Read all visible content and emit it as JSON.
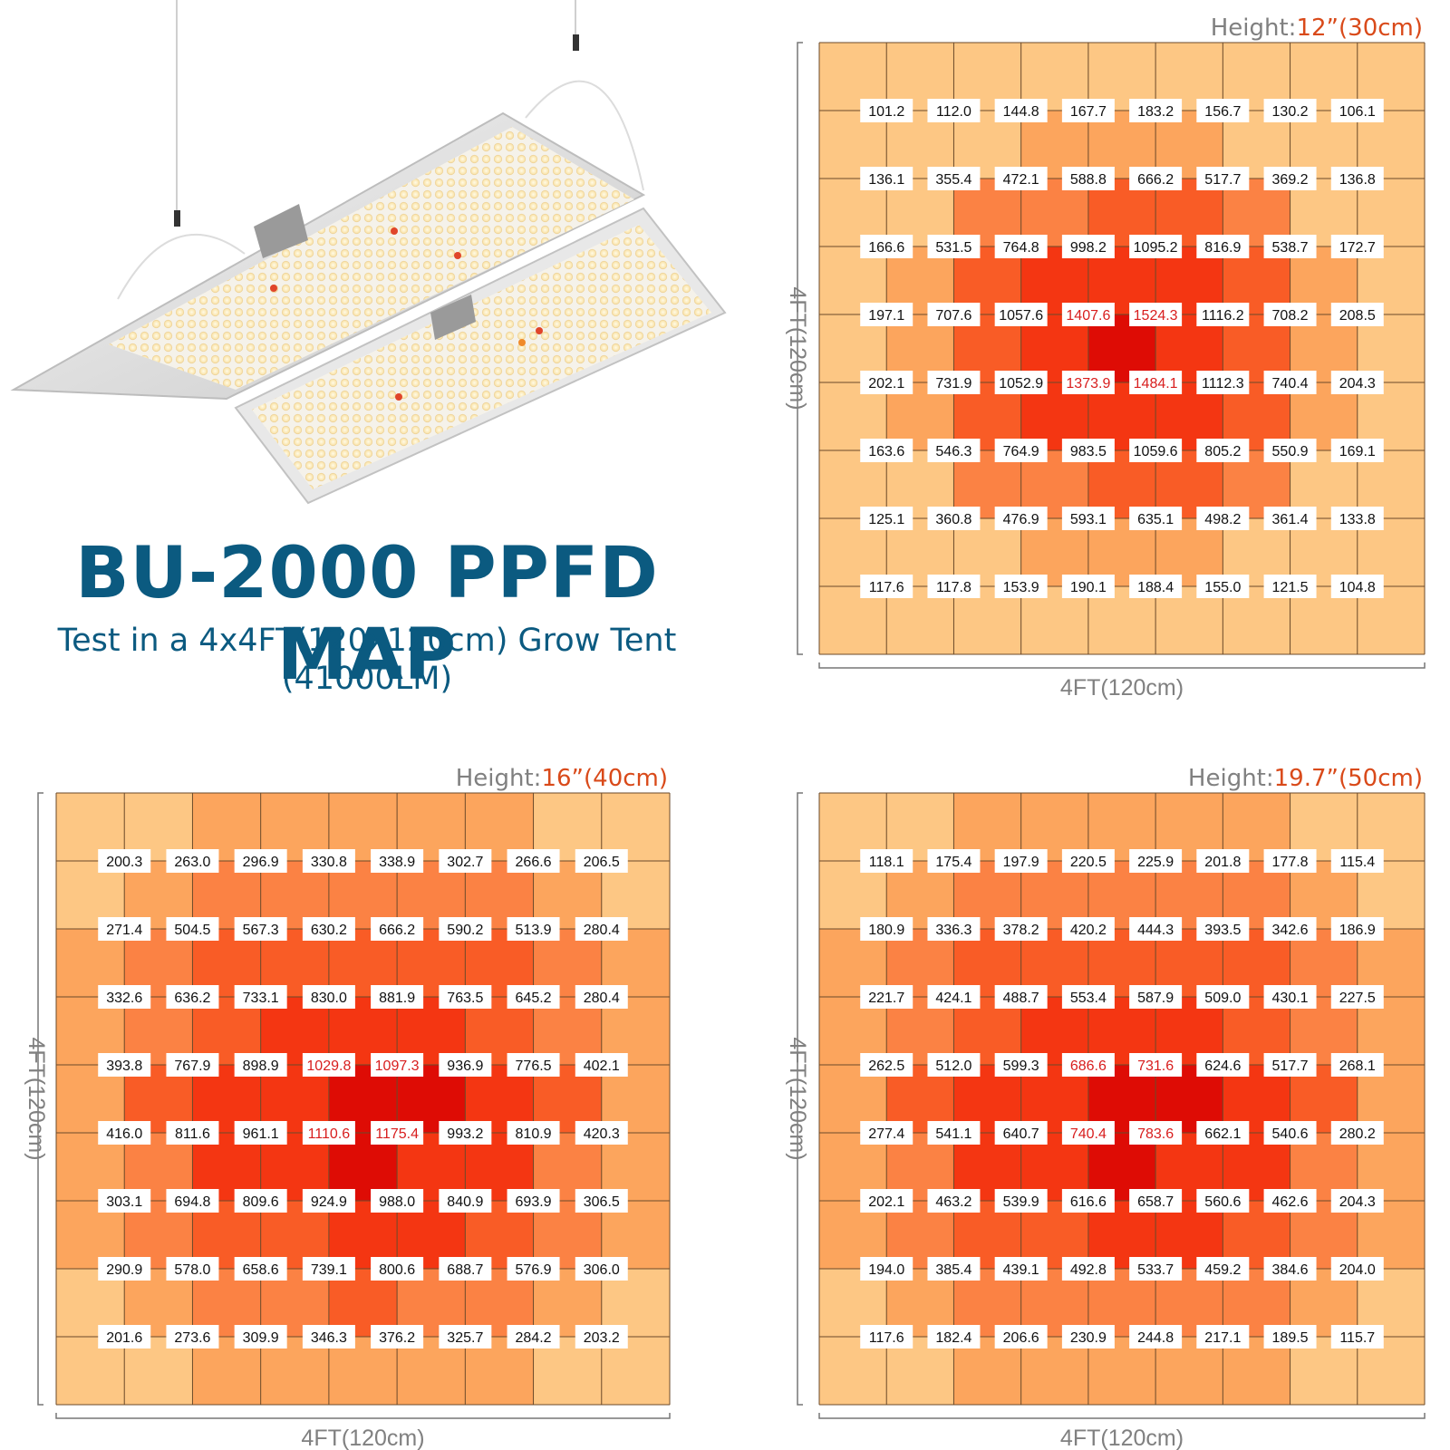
{
  "title": "BU-2000 PPFD MAP",
  "subtitle_line1": "Test in a 4x4FT(120x120cm) Grow Tent",
  "subtitle_line2": "(41000LM)",
  "colors": {
    "title": "#0b5a80",
    "height_value": "#d94a1a",
    "label_gray": "#808080",
    "high_value_text": "#d81e1e",
    "heat_levels": [
      "#fdc784",
      "#fca55d",
      "#fb8244",
      "#f95c26",
      "#f43612",
      "#de0c05"
    ]
  },
  "chart_data": [
    {
      "type": "heatmap",
      "height_prefix": "Height:",
      "height_value": "12”(30cm)",
      "xlabel": "4FT(120cm)",
      "ylabel": "4FT(120cm)",
      "grid_columns": 9,
      "grid_rows": 9,
      "values": [
        [
          101.2,
          112.0,
          144.8,
          167.7,
          183.2,
          156.7,
          130.2,
          106.1
        ],
        [
          136.1,
          355.4,
          472.1,
          588.8,
          666.2,
          517.7,
          369.2,
          136.8
        ],
        [
          166.6,
          531.5,
          764.8,
          998.2,
          1095.2,
          816.9,
          538.7,
          172.7
        ],
        [
          197.1,
          707.6,
          1057.6,
          1407.6,
          1524.3,
          1116.2,
          708.2,
          208.5
        ],
        [
          202.1,
          731.9,
          1052.9,
          1373.9,
          1484.1,
          1112.3,
          740.4,
          204.3
        ],
        [
          163.6,
          546.3,
          764.9,
          983.5,
          1059.6,
          805.2,
          550.9,
          169.1
        ],
        [
          125.1,
          360.8,
          476.9,
          593.1,
          635.1,
          498.2,
          361.4,
          133.8
        ],
        [
          117.6,
          117.8,
          153.9,
          190.1,
          188.4,
          155.0,
          121.5,
          104.8
        ]
      ]
    },
    {
      "type": "heatmap",
      "height_prefix": "Height:",
      "height_value": "16”(40cm)",
      "xlabel": "4FT(120cm)",
      "ylabel": "4FT(120cm)",
      "grid_columns": 9,
      "grid_rows": 9,
      "values": [
        [
          200.3,
          263.0,
          296.9,
          330.8,
          338.9,
          302.7,
          266.6,
          206.5
        ],
        [
          271.4,
          504.5,
          567.3,
          630.2,
          666.2,
          590.2,
          513.9,
          280.4
        ],
        [
          332.6,
          636.2,
          733.1,
          830.0,
          881.9,
          763.5,
          645.2,
          280.4
        ],
        [
          393.8,
          767.9,
          898.9,
          1029.8,
          1097.3,
          936.9,
          776.5,
          402.1
        ],
        [
          416.0,
          811.6,
          961.1,
          1110.6,
          1175.4,
          993.2,
          810.9,
          420.3
        ],
        [
          303.1,
          694.8,
          809.6,
          924.9,
          988.0,
          840.9,
          693.9,
          306.5
        ],
        [
          290.9,
          578.0,
          658.6,
          739.1,
          800.6,
          688.7,
          576.9,
          306.0
        ],
        [
          201.6,
          273.6,
          309.9,
          346.3,
          376.2,
          325.7,
          284.2,
          203.2
        ]
      ]
    },
    {
      "type": "heatmap",
      "height_prefix": "Height:",
      "height_value": "19.7”(50cm)",
      "xlabel": "4FT(120cm)",
      "ylabel": "4FT(120cm)",
      "grid_columns": 9,
      "grid_rows": 9,
      "values": [
        [
          118.1,
          175.4,
          197.9,
          220.5,
          225.9,
          201.8,
          177.8,
          115.4
        ],
        [
          180.9,
          336.3,
          378.2,
          420.2,
          444.3,
          393.5,
          342.6,
          186.9
        ],
        [
          221.7,
          424.1,
          488.7,
          553.4,
          587.9,
          509.0,
          430.1,
          227.5
        ],
        [
          262.5,
          512.0,
          599.3,
          686.6,
          731.6,
          624.6,
          517.7,
          268.1
        ],
        [
          277.4,
          541.1,
          640.7,
          740.4,
          783.6,
          662.1,
          540.6,
          280.2
        ],
        [
          202.1,
          463.2,
          539.9,
          616.6,
          658.7,
          560.6,
          462.6,
          204.3
        ],
        [
          194.0,
          385.4,
          439.1,
          492.8,
          533.7,
          459.2,
          384.6,
          204.0
        ],
        [
          117.6,
          182.4,
          206.6,
          230.9,
          244.8,
          217.1,
          189.5,
          115.7
        ]
      ]
    }
  ],
  "red_value_cells": [
    [
      [
        3,
        3
      ],
      [
        3,
        4
      ],
      [
        4,
        3
      ],
      [
        4,
        4
      ]
    ],
    [
      [
        3,
        3
      ],
      [
        3,
        4
      ],
      [
        4,
        3
      ],
      [
        4,
        4
      ]
    ],
    [
      [
        3,
        3
      ],
      [
        3,
        4
      ],
      [
        4,
        3
      ],
      [
        4,
        4
      ]
    ]
  ],
  "product": {
    "icon": "led-grow-light-icon"
  }
}
